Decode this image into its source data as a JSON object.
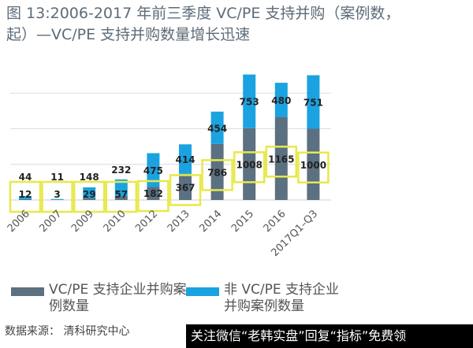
{
  "chart_data": {
    "type": "bar",
    "stacked": true,
    "title": "图 13:2006-2017 年前三季度 VC/PE 支持并购（案例数，起）—VC/PE 支持并购数量增长迅速",
    "categories": [
      "2006",
      "2007",
      "2009",
      "2010",
      "2012",
      "2013",
      "2014",
      "2015",
      "2016",
      "2017Q1–Q3"
    ],
    "series": [
      {
        "name": "VC/PE 支持企业并购案例数量",
        "color": "#5b7080",
        "values": [
          12,
          3,
          29,
          57,
          182,
          367,
          786,
          1008,
          1165,
          1000
        ]
      },
      {
        "name": "非 VC/PE 支持企业并购案例数量",
        "color": "#1aa3e0",
        "values": [
          44,
          11,
          148,
          232,
          475,
          414,
          454,
          753,
          480,
          751
        ]
      }
    ],
    "ylim": [
      0,
      1900
    ],
    "grid": true,
    "legend_position": "bottom",
    "annotation_color": "#e8e84a"
  },
  "source": "数据来源： 清科研究中心",
  "watermark": "关注微信“老韩实盘”回复“指标”免费领"
}
